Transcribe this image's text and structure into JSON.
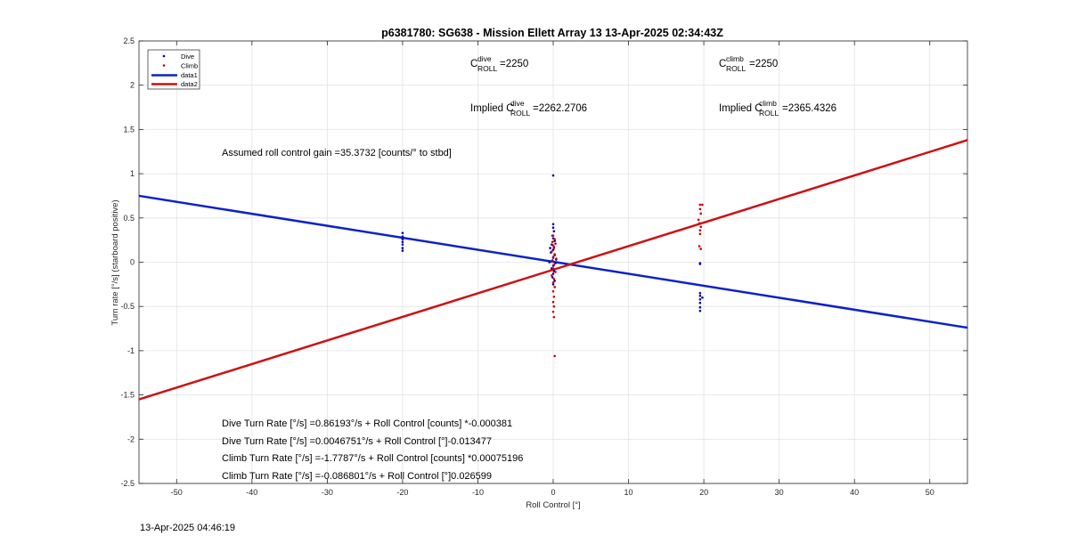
{
  "footer_timestamp": "13-Apr-2025 04:46:19",
  "chart_data": {
    "type": "scatter",
    "title": "p6381780: SG638 - Mission Ellett Array 13 13-Apr-2025 02:34:43Z",
    "xlabel": "Roll Control [°]",
    "ylabel": "Turn rate [°/s] (starboard positive)",
    "xlim": [
      -55,
      55
    ],
    "ylim": [
      -2.5,
      2.5
    ],
    "xticks": [
      -50,
      -40,
      -30,
      -20,
      -10,
      0,
      10,
      20,
      30,
      40,
      50
    ],
    "yticks": [
      -2.5,
      -2,
      -1.5,
      -1,
      -0.5,
      0,
      0.5,
      1,
      1.5,
      2,
      2.5
    ],
    "grid": true,
    "legend": {
      "placement": "top-left",
      "entries": [
        {
          "label": "Dive",
          "color": "#0000aa",
          "style": "marker"
        },
        {
          "label": "Climb",
          "color": "#cc0000",
          "style": "marker"
        },
        {
          "label": "data1",
          "color": "#0b22c8",
          "style": "line"
        },
        {
          "label": "data2",
          "color": "#cc1111",
          "style": "line"
        }
      ]
    },
    "series": [
      {
        "name": "Dive",
        "color": "#0000aa",
        "points": [
          [
            -20.0,
            0.33
          ],
          [
            -20.0,
            0.29
          ],
          [
            -20.0,
            0.26
          ],
          [
            -20.0,
            0.23
          ],
          [
            -20.0,
            0.2
          ],
          [
            -20.0,
            0.16
          ],
          [
            -20.0,
            0.13
          ],
          [
            0.0,
            0.98
          ],
          [
            0.0,
            0.43
          ],
          [
            0.0,
            0.39
          ],
          [
            0.1,
            0.35
          ],
          [
            -0.1,
            0.3
          ],
          [
            0.0,
            0.27
          ],
          [
            0.2,
            0.24
          ],
          [
            -0.2,
            0.2
          ],
          [
            0.1,
            0.17
          ],
          [
            0.0,
            0.14
          ],
          [
            -0.3,
            0.11
          ],
          [
            0.2,
            0.08
          ],
          [
            0.0,
            0.05
          ],
          [
            -0.1,
            0.02
          ],
          [
            0.3,
            -0.01
          ],
          [
            0.0,
            -0.04
          ],
          [
            -0.2,
            -0.07
          ],
          [
            0.1,
            -0.1
          ],
          [
            0.0,
            -0.13
          ],
          [
            -0.1,
            -0.17
          ],
          [
            0.2,
            -0.21
          ],
          [
            0.0,
            -0.25
          ],
          [
            -0.4,
            0.16
          ],
          [
            -0.5,
            0.0
          ],
          [
            0.4,
            0.03
          ],
          [
            19.5,
            -0.01
          ],
          [
            19.5,
            -0.02
          ],
          [
            19.5,
            -0.35
          ],
          [
            19.5,
            -0.38
          ],
          [
            19.5,
            -0.42
          ],
          [
            19.5,
            -0.46
          ],
          [
            19.5,
            -0.51
          ],
          [
            19.5,
            -0.55
          ],
          [
            19.8,
            -0.4
          ]
        ]
      },
      {
        "name": "Climb",
        "color": "#cc0000",
        "points": [
          [
            19.5,
            0.65
          ],
          [
            19.8,
            0.65
          ],
          [
            19.5,
            0.6
          ],
          [
            19.6,
            0.55
          ],
          [
            19.3,
            0.48
          ],
          [
            19.4,
            0.44
          ],
          [
            19.6,
            0.4
          ],
          [
            19.5,
            0.36
          ],
          [
            19.5,
            0.32
          ],
          [
            19.4,
            0.18
          ],
          [
            19.6,
            0.15
          ],
          [
            0.0,
            0.3
          ],
          [
            0.2,
            0.26
          ],
          [
            -0.1,
            0.23
          ],
          [
            0.3,
            0.21
          ],
          [
            0.0,
            0.19
          ],
          [
            0.1,
            0.16
          ],
          [
            -0.2,
            0.12
          ],
          [
            0.2,
            0.09
          ],
          [
            0.0,
            0.06
          ],
          [
            0.4,
            0.04
          ],
          [
            -0.1,
            0.01
          ],
          [
            0.1,
            -0.03
          ],
          [
            0.0,
            -0.07
          ],
          [
            0.3,
            -0.11
          ],
          [
            -0.2,
            -0.15
          ],
          [
            0.1,
            -0.19
          ],
          [
            0.0,
            -0.23
          ],
          [
            0.2,
            -0.28
          ],
          [
            0.0,
            -0.33
          ],
          [
            0.1,
            -0.39
          ],
          [
            0.0,
            -0.45
          ],
          [
            0.1,
            -0.5
          ],
          [
            0.0,
            -0.56
          ],
          [
            0.1,
            -0.62
          ],
          [
            0.2,
            -1.06
          ]
        ]
      }
    ],
    "fit_lines": [
      {
        "name": "data1",
        "color": "#0b22c8",
        "x": [
          -55,
          55
        ],
        "y": [
          0.75,
          -0.74
        ]
      },
      {
        "name": "data2",
        "color": "#cc1111",
        "x": [
          -55,
          55
        ],
        "y": [
          -1.55,
          1.38
        ]
      }
    ],
    "annotations": {
      "c_roll_dive": {
        "label": "C",
        "sup": "dive",
        "sub": "ROLL",
        "value": "=2250"
      },
      "c_roll_climb": {
        "label": "C",
        "sup": "climb",
        "sub": "ROLL",
        "value": "=2250"
      },
      "implied_dive": {
        "prefix": "Implied C",
        "sup": "dive",
        "sub": "ROLL",
        "value": "=2262.2706"
      },
      "implied_climb": {
        "prefix": "Implied C",
        "sup": "climb",
        "sub": "ROLL",
        "value": "=2365.4326"
      },
      "assumed_gain": "Assumed roll control gain =35.3732 [counts/° to stbd]",
      "fit_texts": [
        "Dive Turn Rate [°/s] =0.86193°/s + Roll Control [counts] *-0.000381",
        "Dive Turn Rate [°/s] =0.0046751°/s + Roll Control [°]-0.013477",
        "Climb Turn Rate [°/s] =-1.7787°/s + Roll Control [counts] *0.00075196",
        "Climb Turn Rate [°/s] =-0.086801°/s + Roll Control [°]0.026599"
      ]
    }
  }
}
